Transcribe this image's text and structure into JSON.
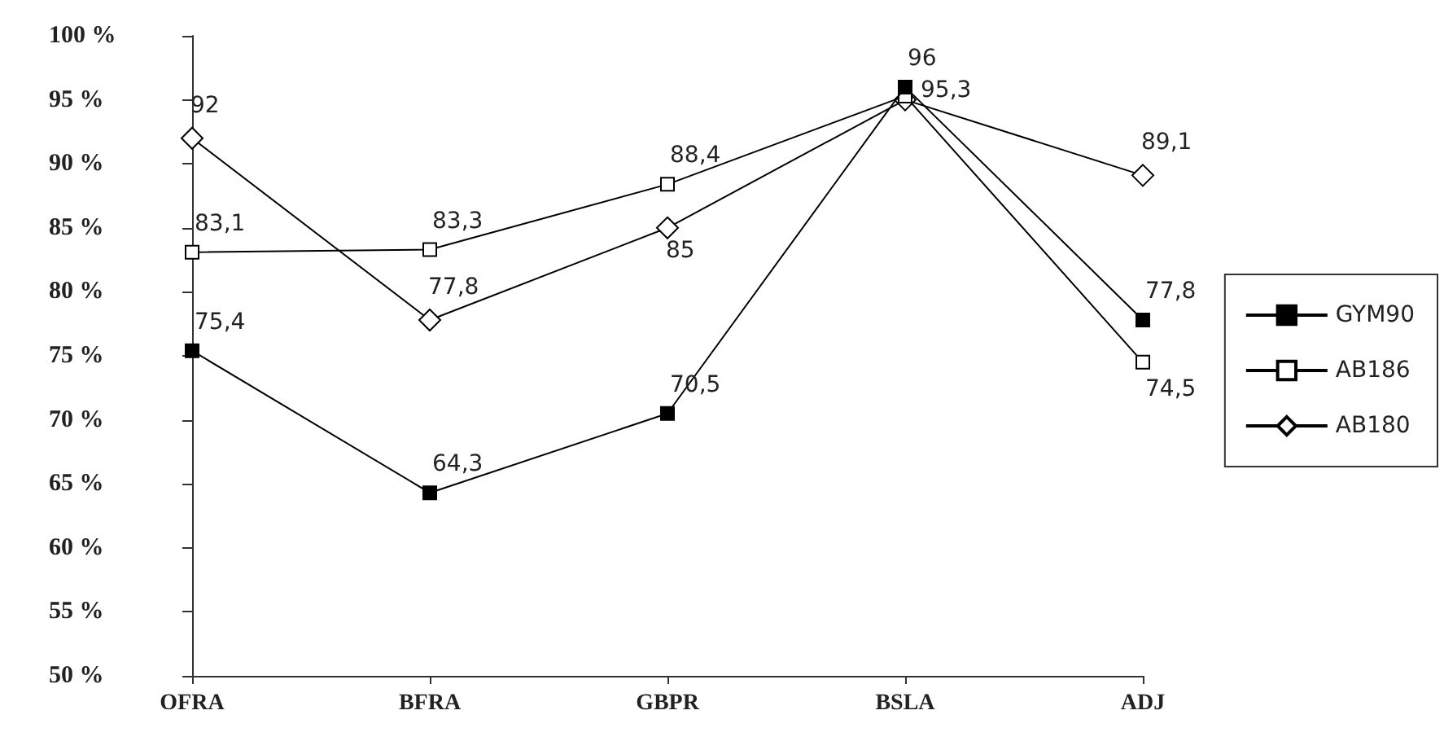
{
  "chart_data": {
    "type": "line",
    "categories": [
      "OFRA",
      "BFRA",
      "GBPR",
      "BSLA",
      "ADJ"
    ],
    "series": [
      {
        "name": "GYM90",
        "color": "#000000",
        "marker": "square",
        "values": [
          75.4,
          64.3,
          70.5,
          96,
          77.8
        ],
        "value_labels": [
          "75,4",
          "64,3",
          "70,5",
          "96",
          "77,8"
        ]
      },
      {
        "name": "AB186",
        "color": "#000000",
        "marker": "square",
        "values": [
          83.1,
          83.3,
          88.4,
          95.3,
          74.5
        ],
        "value_labels": [
          "83,1",
          "83,3",
          "88,4",
          "95,3",
          "74,5"
        ]
      },
      {
        "name": "AB180",
        "color": "#000000",
        "marker": "diamond",
        "values": [
          92,
          77.8,
          85,
          95,
          89.1
        ],
        "value_labels": [
          "92",
          "77,8",
          "85",
          null,
          "89,1"
        ]
      }
    ],
    "ylim": [
      50,
      100
    ],
    "yticks": [
      {
        "value": 50,
        "label": "50 %"
      },
      {
        "value": 55,
        "label": "55 %"
      },
      {
        "value": 60,
        "label": "60 %"
      },
      {
        "value": 65,
        "label": "65 %"
      },
      {
        "value": 70,
        "label": "70 %"
      },
      {
        "value": 75,
        "label": "75 %"
      },
      {
        "value": 80,
        "label": "80 %"
      },
      {
        "value": 85,
        "label": "85 %"
      },
      {
        "value": 90,
        "label": "90 %"
      },
      {
        "value": 95,
        "label": "95 %"
      },
      {
        "value": 100,
        "label": "100 %"
      }
    ],
    "grid": false,
    "legend": "right",
    "line_style": "solid"
  }
}
